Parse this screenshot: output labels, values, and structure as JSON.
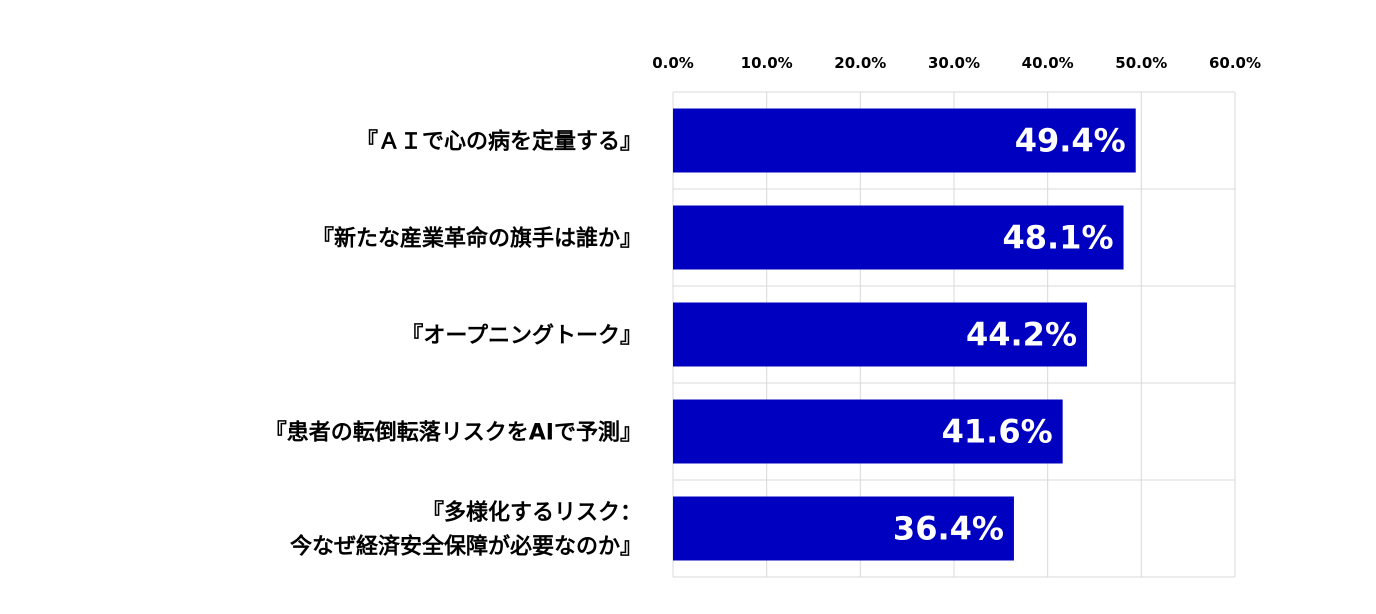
{
  "chart_data": {
    "type": "bar",
    "orientation": "horizontal",
    "categories": [
      [
        "『ＡＩで心の病を定量する』"
      ],
      [
        "『新たな産業革命の旗手は誰か』"
      ],
      [
        "『オープニングトーク』"
      ],
      [
        "『患者の転倒転落リスクをAIで予測』"
      ],
      [
        "『多様化するリスク：",
        "今なぜ経済安全保障が必要なのか』"
      ]
    ],
    "values": [
      49.4,
      48.1,
      44.2,
      41.6,
      36.4
    ],
    "data_labels": [
      "49.4%",
      "48.1%",
      "44.2%",
      "41.6%",
      "36.4%"
    ],
    "xlim": [
      0,
      60
    ],
    "x_ticks": [
      0,
      10,
      20,
      30,
      40,
      50,
      60
    ],
    "x_tick_labels": [
      "0.0%",
      "10.0%",
      "20.0%",
      "30.0%",
      "40.0%",
      "50.0%",
      "60.0%"
    ],
    "x_axis_position": "top",
    "grid": true,
    "bar_color": "#0000c0",
    "title": "",
    "xlabel": "",
    "ylabel": ""
  }
}
